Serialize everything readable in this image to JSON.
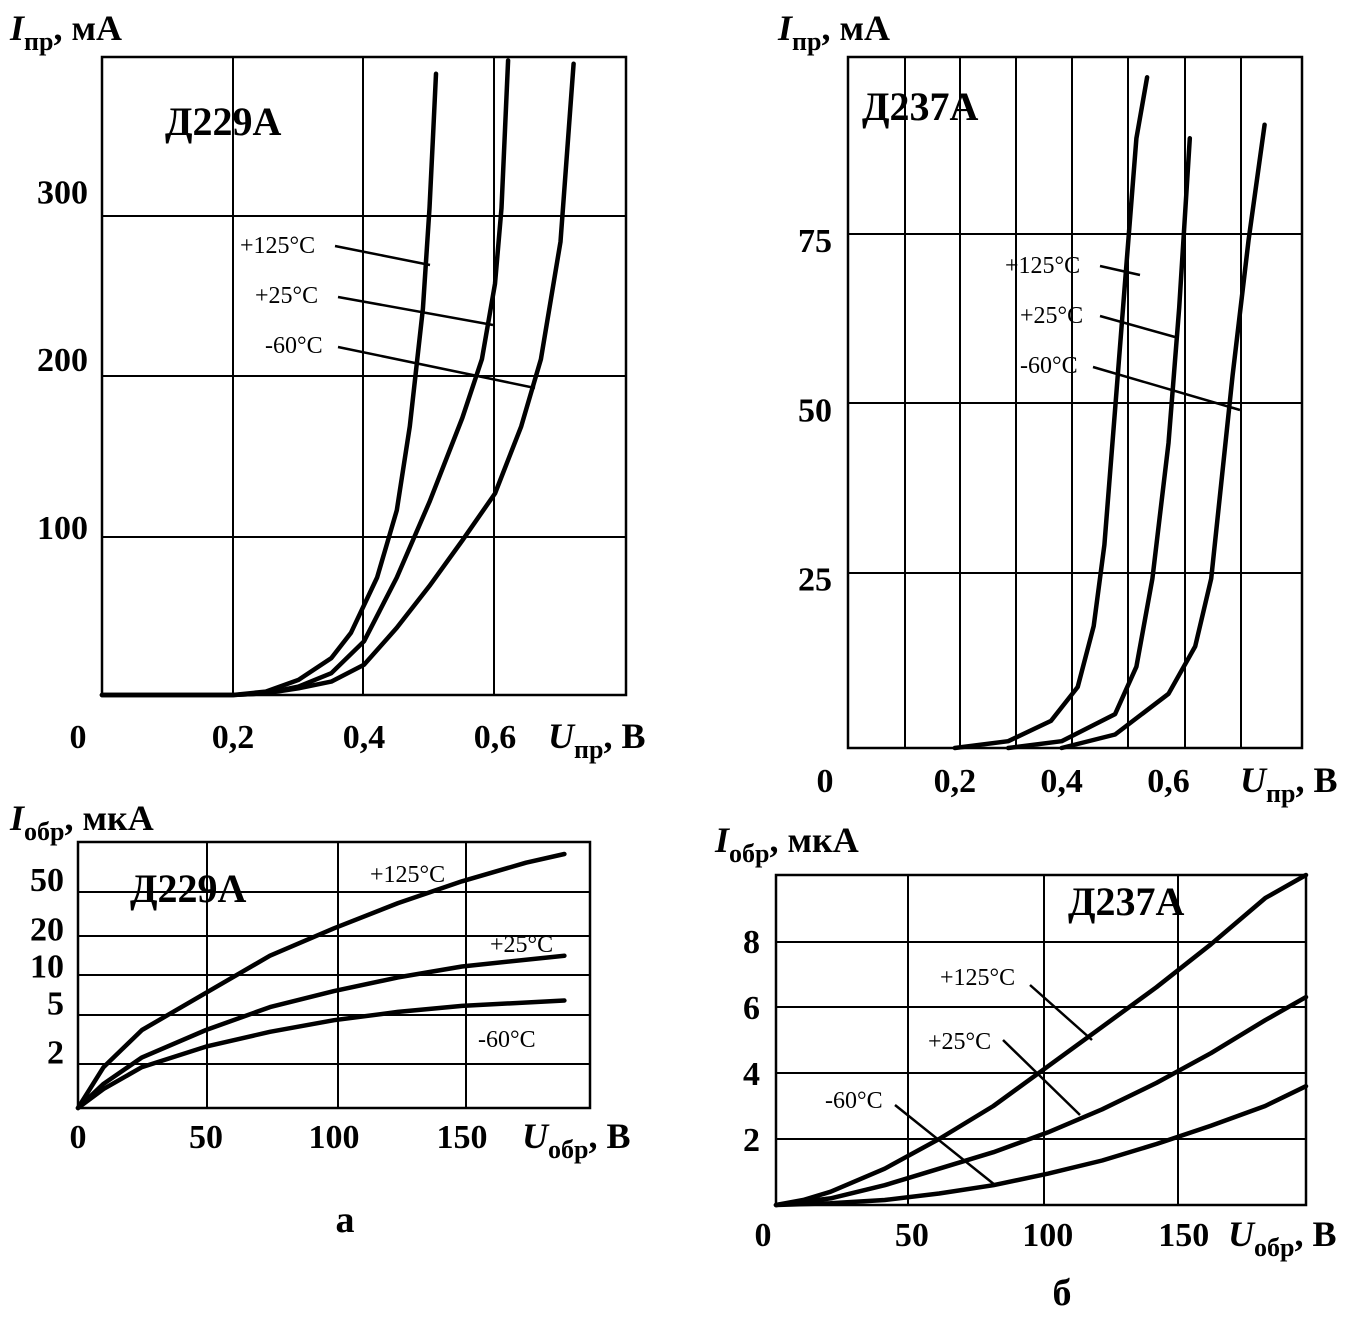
{
  "panels": {
    "a": "а",
    "b": "б"
  },
  "units": {
    "comma": ", "
  },
  "chart_data": [
    {
      "id": "fwd_a",
      "type": "line",
      "title": "Д229А",
      "ylabel": {
        "sym": "I",
        "sub": "пр",
        "unit": "мА"
      },
      "xlabel": {
        "sym": "U",
        "sub": "пр",
        "unit": "В"
      },
      "xlim": [
        0,
        0.8
      ],
      "ylim": [
        0,
        380
      ],
      "x_ticks": [
        {
          "v": 0.2,
          "label": "0,2"
        },
        {
          "v": 0.4,
          "label": "0,4"
        },
        {
          "v": 0.6,
          "label": "0,6"
        }
      ],
      "y_ticks": [
        {
          "v": 100,
          "label": "100"
        },
        {
          "v": 200,
          "label": "200"
        },
        {
          "v": 300,
          "label": "300"
        }
      ],
      "origin_label": "0",
      "series": [
        {
          "name": "+125°C",
          "points": [
            [
              0,
              0
            ],
            [
              0.2,
              0
            ],
            [
              0.25,
              2
            ],
            [
              0.3,
              9
            ],
            [
              0.35,
              22
            ],
            [
              0.38,
              37
            ],
            [
              0.42,
              70
            ],
            [
              0.45,
              110
            ],
            [
              0.47,
              160
            ],
            [
              0.49,
              230
            ],
            [
              0.5,
              290
            ],
            [
              0.505,
              330
            ],
            [
              0.51,
              370
            ]
          ]
        },
        {
          "name": "+25°C",
          "points": [
            [
              0,
              0
            ],
            [
              0.2,
              0
            ],
            [
              0.25,
              1
            ],
            [
              0.3,
              5
            ],
            [
              0.35,
              13
            ],
            [
              0.4,
              32
            ],
            [
              0.45,
              70
            ],
            [
              0.5,
              115
            ],
            [
              0.55,
              165
            ],
            [
              0.58,
              200
            ],
            [
              0.6,
              245
            ],
            [
              0.61,
              290
            ],
            [
              0.62,
              378
            ]
          ]
        },
        {
          "name": "-60°C",
          "points": [
            [
              0,
              0
            ],
            [
              0.2,
              0
            ],
            [
              0.25,
              1
            ],
            [
              0.3,
              4
            ],
            [
              0.35,
              8
            ],
            [
              0.4,
              18
            ],
            [
              0.45,
              40
            ],
            [
              0.5,
              65
            ],
            [
              0.55,
              92
            ],
            [
              0.6,
              120
            ],
            [
              0.64,
              160
            ],
            [
              0.67,
              200
            ],
            [
              0.7,
              270
            ],
            [
              0.72,
              376
            ]
          ]
        }
      ]
    },
    {
      "id": "fwd_b",
      "type": "line",
      "title": "Д237А",
      "ylabel": {
        "sym": "I",
        "sub": "пр",
        "unit": "мА"
      },
      "xlabel": {
        "sym": "U",
        "sub": "пр",
        "unit": "В"
      },
      "xlim": [
        0,
        0.85
      ],
      "ylim": [
        0,
        102
      ],
      "x_ticks": [
        {
          "v": 0.2,
          "label": "0,2"
        },
        {
          "v": 0.4,
          "label": "0,4"
        },
        {
          "v": 0.6,
          "label": "0,6"
        }
      ],
      "y_ticks": [
        {
          "v": 25,
          "label": "25"
        },
        {
          "v": 50,
          "label": "50"
        },
        {
          "v": 75,
          "label": "75"
        }
      ],
      "origin_label": "0",
      "series": [
        {
          "name": "+125°C",
          "points": [
            [
              0.2,
              0
            ],
            [
              0.3,
              1
            ],
            [
              0.38,
              4
            ],
            [
              0.43,
              9
            ],
            [
              0.46,
              18
            ],
            [
              0.48,
              30
            ],
            [
              0.5,
              50
            ],
            [
              0.52,
              70
            ],
            [
              0.54,
              90
            ],
            [
              0.56,
              99
            ]
          ]
        },
        {
          "name": "+25°C",
          "points": [
            [
              0.3,
              0
            ],
            [
              0.4,
              1
            ],
            [
              0.5,
              5
            ],
            [
              0.54,
              12
            ],
            [
              0.57,
              25
            ],
            [
              0.6,
              45
            ],
            [
              0.62,
              65
            ],
            [
              0.64,
              90
            ]
          ]
        },
        {
          "name": "-60°C",
          "points": [
            [
              0.4,
              0
            ],
            [
              0.5,
              2
            ],
            [
              0.6,
              8
            ],
            [
              0.65,
              15
            ],
            [
              0.68,
              25
            ],
            [
              0.7,
              40
            ],
            [
              0.72,
              55
            ],
            [
              0.75,
              75
            ],
            [
              0.78,
              92
            ]
          ]
        }
      ]
    },
    {
      "id": "rev_a",
      "type": "line",
      "title": "Д229А",
      "ylabel": {
        "sym": "I",
        "sub": "обр",
        "unit": "мкА"
      },
      "xlabel": {
        "sym": "U",
        "sub": "обр",
        "unit": "В"
      },
      "xlim": [
        0,
        200
      ],
      "y_scale": "log",
      "ylim": [
        0.7,
        100
      ],
      "x_ticks": [
        {
          "v": 0,
          "label": "0"
        },
        {
          "v": 50,
          "label": "50"
        },
        {
          "v": 100,
          "label": "100"
        },
        {
          "v": 150,
          "label": "150"
        }
      ],
      "y_ticks": [
        {
          "v": 2,
          "label": "2"
        },
        {
          "v": 5,
          "label": "5"
        },
        {
          "v": 10,
          "label": "10"
        },
        {
          "v": 20,
          "label": "20"
        },
        {
          "v": 50,
          "label": "50"
        }
      ],
      "series": [
        {
          "name": "+125°C",
          "points": [
            [
              0,
              0.7
            ],
            [
              10,
              1.5
            ],
            [
              25,
              3
            ],
            [
              50,
              6
            ],
            [
              75,
              12
            ],
            [
              100,
              20
            ],
            [
              125,
              32
            ],
            [
              150,
              48
            ],
            [
              175,
              68
            ],
            [
              190,
              80
            ]
          ]
        },
        {
          "name": "+25°C",
          "points": [
            [
              0,
              0.7
            ],
            [
              10,
              1.1
            ],
            [
              25,
              1.8
            ],
            [
              50,
              3
            ],
            [
              75,
              4.6
            ],
            [
              100,
              6.2
            ],
            [
              125,
              8
            ],
            [
              150,
              9.8
            ],
            [
              190,
              12
            ]
          ]
        },
        {
          "name": "-60°C",
          "points": [
            [
              0,
              0.7
            ],
            [
              10,
              1
            ],
            [
              25,
              1.5
            ],
            [
              50,
              2.2
            ],
            [
              75,
              2.9
            ],
            [
              100,
              3.6
            ],
            [
              125,
              4.2
            ],
            [
              150,
              4.7
            ],
            [
              190,
              5.2
            ]
          ]
        }
      ]
    },
    {
      "id": "rev_b",
      "type": "line",
      "title": "Д237А",
      "ylabel": {
        "sym": "I",
        "sub": "обр",
        "unit": "мкА"
      },
      "xlabel": {
        "sym": "U",
        "sub": "обр",
        "unit": "В"
      },
      "xlim": [
        0,
        195
      ],
      "ylim": [
        0,
        10
      ],
      "x_ticks": [
        {
          "v": 50,
          "label": "50"
        },
        {
          "v": 100,
          "label": "100"
        },
        {
          "v": 150,
          "label": "150"
        }
      ],
      "y_ticks": [
        {
          "v": 2,
          "label": "2"
        },
        {
          "v": 4,
          "label": "4"
        },
        {
          "v": 6,
          "label": "6"
        },
        {
          "v": 8,
          "label": "8"
        }
      ],
      "origin_label": "0",
      "series": [
        {
          "name": "+125°C",
          "points": [
            [
              0,
              0
            ],
            [
              10,
              0.15
            ],
            [
              20,
              0.4
            ],
            [
              40,
              1.1
            ],
            [
              60,
              2
            ],
            [
              80,
              3
            ],
            [
              100,
              4.2
            ],
            [
              120,
              5.4
            ],
            [
              140,
              6.6
            ],
            [
              160,
              7.9
            ],
            [
              180,
              9.3
            ],
            [
              195,
              10
            ]
          ]
        },
        {
          "name": "+25°C",
          "points": [
            [
              0,
              0
            ],
            [
              20,
              0.2
            ],
            [
              40,
              0.6
            ],
            [
              60,
              1.1
            ],
            [
              80,
              1.6
            ],
            [
              100,
              2.2
            ],
            [
              120,
              2.9
            ],
            [
              140,
              3.7
            ],
            [
              160,
              4.6
            ],
            [
              180,
              5.6
            ],
            [
              195,
              6.3
            ]
          ]
        },
        {
          "name": "-60°C",
          "points": [
            [
              0,
              0
            ],
            [
              20,
              0.05
            ],
            [
              40,
              0.15
            ],
            [
              60,
              0.35
            ],
            [
              80,
              0.6
            ],
            [
              100,
              0.95
            ],
            [
              120,
              1.35
            ],
            [
              140,
              1.85
            ],
            [
              160,
              2.4
            ],
            [
              180,
              3
            ],
            [
              195,
              3.6
            ]
          ]
        }
      ]
    }
  ]
}
